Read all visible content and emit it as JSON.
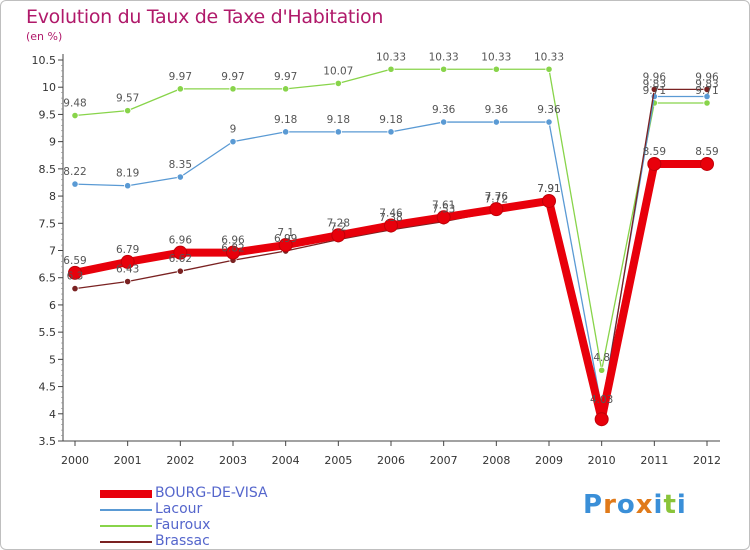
{
  "chart_data": {
    "type": "line",
    "title": "Evolution du Taux de Taxe d'Habitation",
    "subtitle": "(en %)",
    "x": [
      "2000",
      "2001",
      "2002",
      "2003",
      "2004",
      "2005",
      "2006",
      "2007",
      "2008",
      "2009",
      "2010",
      "2011",
      "2012"
    ],
    "ylim": [
      3.5,
      10.5
    ],
    "yticks": [
      "3.5",
      "4",
      "4.5",
      "5",
      "5.5",
      "6",
      "6.5",
      "7",
      "7.5",
      "8",
      "8.5",
      "9",
      "9.5",
      "10",
      "10.5"
    ],
    "grid": false,
    "legend_position": "bottom-left",
    "series": [
      {
        "name": "BOURG-DE-VISA",
        "color": "#e8000b",
        "values": [
          6.59,
          6.79,
          6.96,
          6.96,
          7.1,
          7.28,
          7.46,
          7.61,
          7.76,
          7.91,
          3.9,
          8.59,
          8.59
        ],
        "labels": [
          "6.59",
          "6.79",
          "6.96",
          "6.96",
          "7.1",
          "7.28",
          "7.46",
          "7.61",
          "7.76",
          "7.91",
          "",
          "8.59",
          "8.59"
        ]
      },
      {
        "name": "Lacour",
        "color": "#5a9ad4",
        "values": [
          8.22,
          8.19,
          8.35,
          9.0,
          9.18,
          9.18,
          9.18,
          9.36,
          9.36,
          9.36,
          4.1,
          9.83,
          9.83
        ],
        "labels": [
          "8.22",
          "8.19",
          "8.35",
          "9",
          "9.18",
          "9.18",
          "9.18",
          "9.36",
          "9.36",
          "9.36",
          "",
          "9.83",
          "9.83"
        ]
      },
      {
        "name": "Fauroux",
        "color": "#88d44a",
        "values": [
          9.48,
          9.57,
          9.97,
          9.97,
          9.97,
          10.07,
          10.33,
          10.33,
          10.33,
          10.33,
          4.8,
          9.71,
          9.71
        ],
        "labels": [
          "9.48",
          "9.57",
          "9.97",
          "9.97",
          "9.97",
          "10.07",
          "10.33",
          "10.33",
          "10.33",
          "10.33",
          "4.8",
          "9.71",
          "9.71"
        ]
      },
      {
        "name": "Brassac",
        "color": "#7a2222",
        "values": [
          6.3,
          6.43,
          6.62,
          6.82,
          6.99,
          7.2,
          7.38,
          7.53,
          7.72,
          7.91,
          4.03,
          9.96,
          9.96
        ],
        "labels": [
          "6.3",
          "6.43",
          "6.62",
          "6.82",
          "6.99",
          "7.2",
          "7.38",
          "7.53",
          "7.72",
          "7.91",
          "4.03",
          "9.96",
          "9.96"
        ]
      }
    ]
  },
  "brand": {
    "letters": [
      "P",
      "r",
      "o",
      "x",
      "i",
      "t",
      "i"
    ],
    "colors": [
      "#3a8fd8",
      "#e07a1a",
      "#3a8fd8",
      "#e07a1a",
      "#3a8fd8",
      "#8ac43a",
      "#3a8fd8"
    ]
  }
}
